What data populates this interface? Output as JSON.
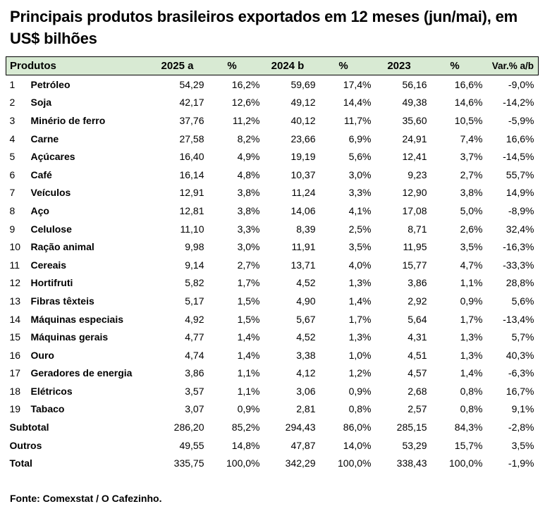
{
  "title": "Principais produtos brasileiros exportados em 12 meses (jun/mai), em US$ bilhões",
  "header_bg_color": "#d8ead3",
  "table": {
    "headers": [
      "Produtos",
      "2025 a",
      "%",
      "2024 b",
      "%",
      "2023",
      "%",
      "Var.% a/b"
    ],
    "rows": [
      [
        "1",
        "Petróleo",
        "54,29",
        "16,2%",
        "59,69",
        "17,4%",
        "56,16",
        "16,6%",
        "-9,0%"
      ],
      [
        "2",
        "Soja",
        "42,17",
        "12,6%",
        "49,12",
        "14,4%",
        "49,38",
        "14,6%",
        "-14,2%"
      ],
      [
        "3",
        "Minério de ferro",
        "37,76",
        "11,2%",
        "40,12",
        "11,7%",
        "35,60",
        "10,5%",
        "-5,9%"
      ],
      [
        "4",
        "Carne",
        "27,58",
        "8,2%",
        "23,66",
        "6,9%",
        "24,91",
        "7,4%",
        "16,6%"
      ],
      [
        "5",
        "Açúcares",
        "16,40",
        "4,9%",
        "19,19",
        "5,6%",
        "12,41",
        "3,7%",
        "-14,5%"
      ],
      [
        "6",
        "Café",
        "16,14",
        "4,8%",
        "10,37",
        "3,0%",
        "9,23",
        "2,7%",
        "55,7%"
      ],
      [
        "7",
        "Veículos",
        "12,91",
        "3,8%",
        "11,24",
        "3,3%",
        "12,90",
        "3,8%",
        "14,9%"
      ],
      [
        "8",
        "Aço",
        "12,81",
        "3,8%",
        "14,06",
        "4,1%",
        "17,08",
        "5,0%",
        "-8,9%"
      ],
      [
        "9",
        "Celulose",
        "11,10",
        "3,3%",
        "8,39",
        "2,5%",
        "8,71",
        "2,6%",
        "32,4%"
      ],
      [
        "10",
        "Ração animal",
        "9,98",
        "3,0%",
        "11,91",
        "3,5%",
        "11,95",
        "3,5%",
        "-16,3%"
      ],
      [
        "11",
        "Cereais",
        "9,14",
        "2,7%",
        "13,71",
        "4,0%",
        "15,77",
        "4,7%",
        "-33,3%"
      ],
      [
        "12",
        "Hortifruti",
        "5,82",
        "1,7%",
        "4,52",
        "1,3%",
        "3,86",
        "1,1%",
        "28,8%"
      ],
      [
        "13",
        "Fibras têxteis",
        "5,17",
        "1,5%",
        "4,90",
        "1,4%",
        "2,92",
        "0,9%",
        "5,6%"
      ],
      [
        "14",
        "Máquinas especiais",
        "4,92",
        "1,5%",
        "5,67",
        "1,7%",
        "5,64",
        "1,7%",
        "-13,4%"
      ],
      [
        "15",
        "Máquinas gerais",
        "4,77",
        "1,4%",
        "4,52",
        "1,3%",
        "4,31",
        "1,3%",
        "5,7%"
      ],
      [
        "16",
        "Ouro",
        "4,74",
        "1,4%",
        "3,38",
        "1,0%",
        "4,51",
        "1,3%",
        "40,3%"
      ],
      [
        "17",
        "Geradores de energia",
        "3,86",
        "1,1%",
        "4,12",
        "1,2%",
        "4,57",
        "1,4%",
        "-6,3%"
      ],
      [
        "18",
        "Elétricos",
        "3,57",
        "1,1%",
        "3,06",
        "0,9%",
        "2,68",
        "0,8%",
        "16,7%"
      ],
      [
        "19",
        "Tabaco",
        "3,07",
        "0,9%",
        "2,81",
        "0,8%",
        "2,57",
        "0,8%",
        "9,1%"
      ]
    ],
    "summary": [
      [
        "Subtotal",
        "286,20",
        "85,2%",
        "294,43",
        "86,0%",
        "285,15",
        "84,3%",
        "-2,8%"
      ],
      [
        "Outros",
        "49,55",
        "14,8%",
        "47,87",
        "14,0%",
        "53,29",
        "15,7%",
        "3,5%"
      ],
      [
        "Total",
        "335,75",
        "100,0%",
        "342,29",
        "100,0%",
        "338,43",
        "100,0%",
        "-1,9%"
      ]
    ]
  },
  "source": "Fonte: Comexstat / O Cafezinho."
}
